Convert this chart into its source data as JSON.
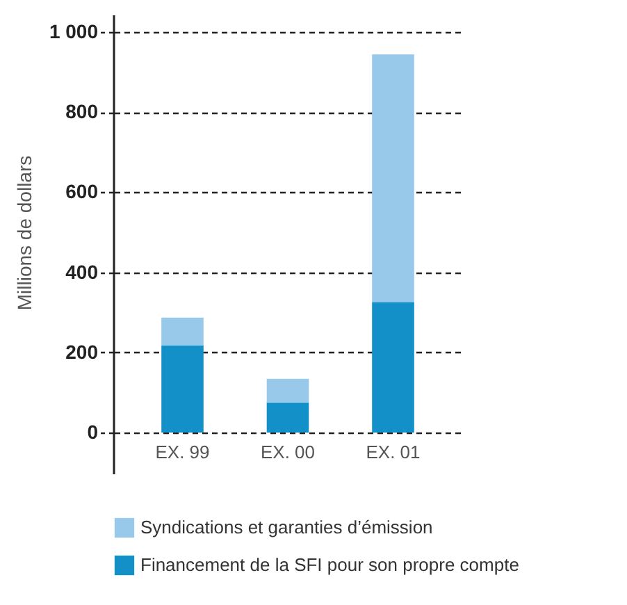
{
  "chart_data": {
    "type": "bar",
    "stacked": true,
    "ylabel": "Millions de dollars",
    "categories": [
      "EX. 99",
      "EX. 00",
      "EX. 01"
    ],
    "series": [
      {
        "name": "Financement de la SFI pour son propre compte",
        "color": "#1490c8",
        "values": [
          218,
          75,
          326
        ]
      },
      {
        "name": "Syndications et garanties d’émission",
        "color": "#99c9ea",
        "values": [
          69,
          59,
          618
        ]
      }
    ],
    "ylim": [
      0,
      1000
    ],
    "yticks": [
      0,
      200,
      400,
      600,
      800,
      {
        "value": 1000,
        "label": "1 000"
      }
    ],
    "grid": "y",
    "legend": "bottom"
  }
}
